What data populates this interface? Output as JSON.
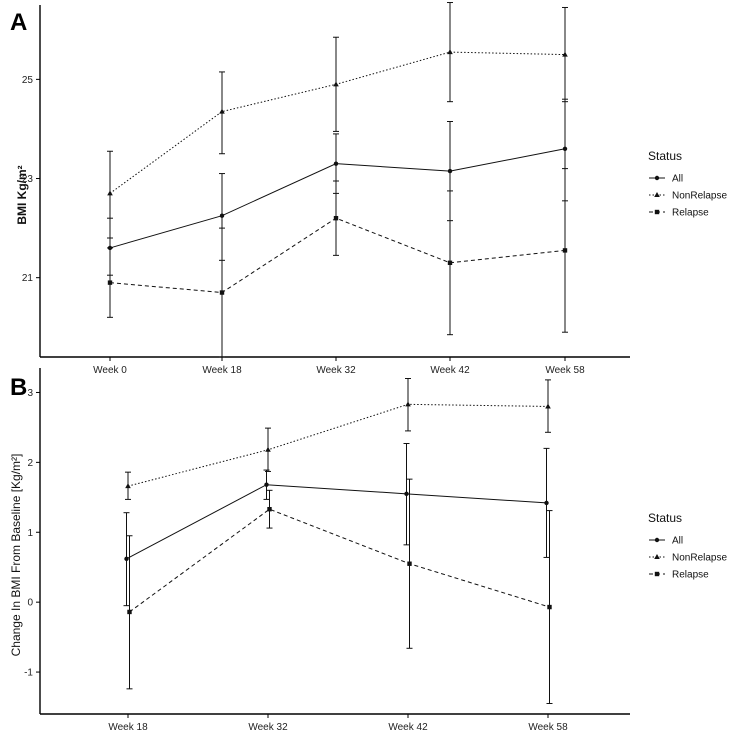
{
  "chart_data": [
    {
      "type": "line",
      "panel": "A",
      "ylabel": "BMI Kg/m²",
      "xlabel": "",
      "categories": [
        "Week 0",
        "Week 18",
        "Week 32",
        "Week 42",
        "Week 58"
      ],
      "ylim": [
        19.4,
        26.5
      ],
      "yticks": [
        21,
        23,
        25
      ],
      "grid": false,
      "series": [
        {
          "name": "All",
          "values": [
            21.6,
            22.25,
            23.3,
            23.15,
            23.6
          ],
          "lower": [
            21.05,
            21.35,
            22.7,
            22.15,
            22.55
          ],
          "upper": [
            22.2,
            23.1,
            23.9,
            24.15,
            24.6
          ]
        },
        {
          "name": "NonRelapse",
          "values": [
            22.7,
            24.35,
            24.9,
            25.55,
            25.5
          ],
          "lower": [
            21.8,
            23.5,
            23.95,
            24.55,
            24.55
          ],
          "upper": [
            23.55,
            25.15,
            25.85,
            26.55,
            26.45
          ]
        },
        {
          "name": "Relapse",
          "values": [
            20.9,
            20.7,
            22.2,
            21.3,
            21.55
          ],
          "lower": [
            20.2,
            19.4,
            21.45,
            19.85,
            19.9
          ],
          "upper": [
            21.6,
            22.0,
            22.95,
            22.75,
            23.2
          ]
        }
      ]
    },
    {
      "type": "line",
      "panel": "B",
      "ylabel": "Change In BMI From Baseline [Kg/m²]",
      "xlabel": "",
      "categories": [
        "Week 18",
        "Week 32",
        "Week 42",
        "Week 58"
      ],
      "ylim": [
        -1.6,
        3.35
      ],
      "yticks": [
        -1,
        0,
        1,
        2,
        3
      ],
      "grid": false,
      "series": [
        {
          "name": "All",
          "values": [
            0.62,
            1.68,
            1.55,
            1.42
          ],
          "lower": [
            -0.05,
            1.47,
            0.82,
            0.64
          ],
          "upper": [
            1.28,
            1.89,
            2.27,
            2.2
          ]
        },
        {
          "name": "NonRelapse",
          "values": [
            1.66,
            2.18,
            2.83,
            2.8
          ],
          "lower": [
            1.47,
            1.87,
            2.45,
            2.43
          ],
          "upper": [
            1.86,
            2.49,
            3.2,
            3.18
          ]
        },
        {
          "name": "Relapse",
          "values": [
            -0.14,
            1.33,
            0.55,
            -0.07
          ],
          "lower": [
            -1.24,
            1.06,
            -0.66,
            -1.45
          ],
          "upper": [
            0.95,
            1.6,
            1.76,
            1.31
          ]
        }
      ]
    }
  ],
  "panels": {
    "a": {
      "letter": "A",
      "ylabel": "BMI Kg/m²"
    },
    "b": {
      "letter": "B",
      "ylabel": "Change In BMI From Baseline [Kg/m²]"
    }
  },
  "legend": {
    "title": "Status",
    "items": [
      {
        "label": "All",
        "marker": "circle",
        "dash": "solid"
      },
      {
        "label": "NonRelapse",
        "marker": "triangle",
        "dash": "dotted"
      },
      {
        "label": "Relapse",
        "marker": "square",
        "dash": "dashed"
      }
    ]
  }
}
